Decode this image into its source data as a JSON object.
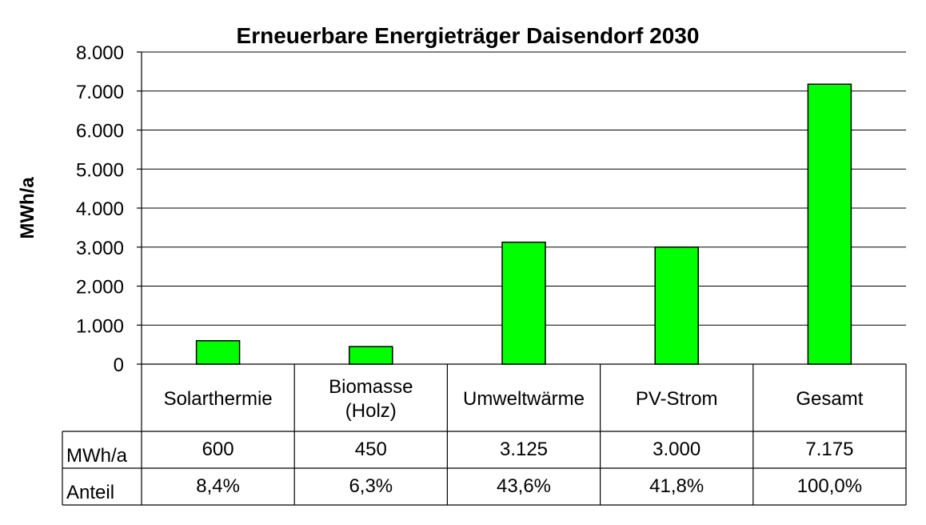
{
  "chart_data": {
    "type": "bar",
    "title": "Erneuerbare Energieträger Daisendorf 2030",
    "ylabel": "MWh/a",
    "xlabel": "",
    "ylim": [
      0,
      8000
    ],
    "yticks": [
      0,
      1000,
      2000,
      3000,
      4000,
      5000,
      6000,
      7000,
      8000
    ],
    "ytick_labels": [
      "0",
      "1.000",
      "2.000",
      "3.000",
      "4.000",
      "5.000",
      "6.000",
      "7.000",
      "8.000"
    ],
    "grid": true,
    "categories": [
      [
        "Solarthermie"
      ],
      [
        "Biomasse",
        "(Holz)"
      ],
      [
        "Umweltwärme"
      ],
      [
        "PV-Strom"
      ],
      [
        "Gesamt"
      ]
    ],
    "series": [
      {
        "values": [
          600,
          450,
          3125,
          3000,
          7175
        ],
        "color": "#00ff00"
      }
    ],
    "data_table": {
      "rows": [
        {
          "label": "MWh/a",
          "cells": [
            "600",
            "450",
            "3.125",
            "3.000",
            "7.175"
          ]
        },
        {
          "label": "Anteil",
          "cells": [
            "8,4%",
            "6,3%",
            "43,6%",
            "41,8%",
            "100,0%"
          ]
        }
      ]
    }
  }
}
